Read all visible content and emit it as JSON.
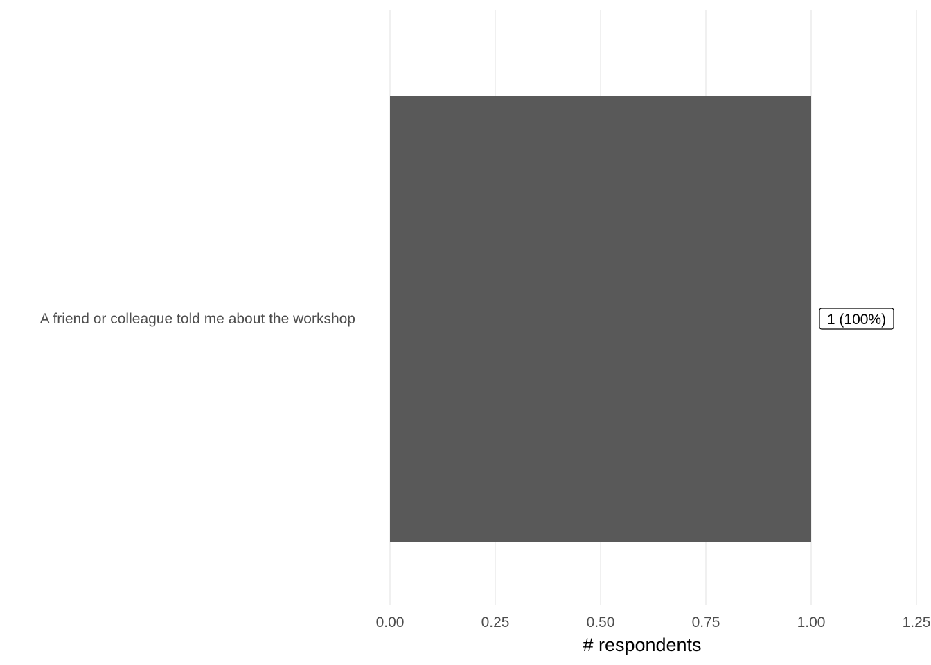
{
  "chart_data": {
    "type": "bar",
    "orientation": "horizontal",
    "categories": [
      "A friend or colleague told me about the workshop"
    ],
    "values": [
      1
    ],
    "data_labels": [
      "1 (100%)"
    ],
    "xlabel": "# respondents",
    "ylabel": "",
    "xlim": [
      0,
      1.25
    ],
    "x_ticks": [
      "0.00",
      "0.25",
      "0.50",
      "0.75",
      "1.00",
      "1.25"
    ],
    "grid": "vertical major gridlines",
    "legend": "none",
    "colors": {
      "bar": "#595959",
      "grid": "#ebebeb",
      "tick_text": "#4d4d4d",
      "background": "#ffffff"
    }
  }
}
